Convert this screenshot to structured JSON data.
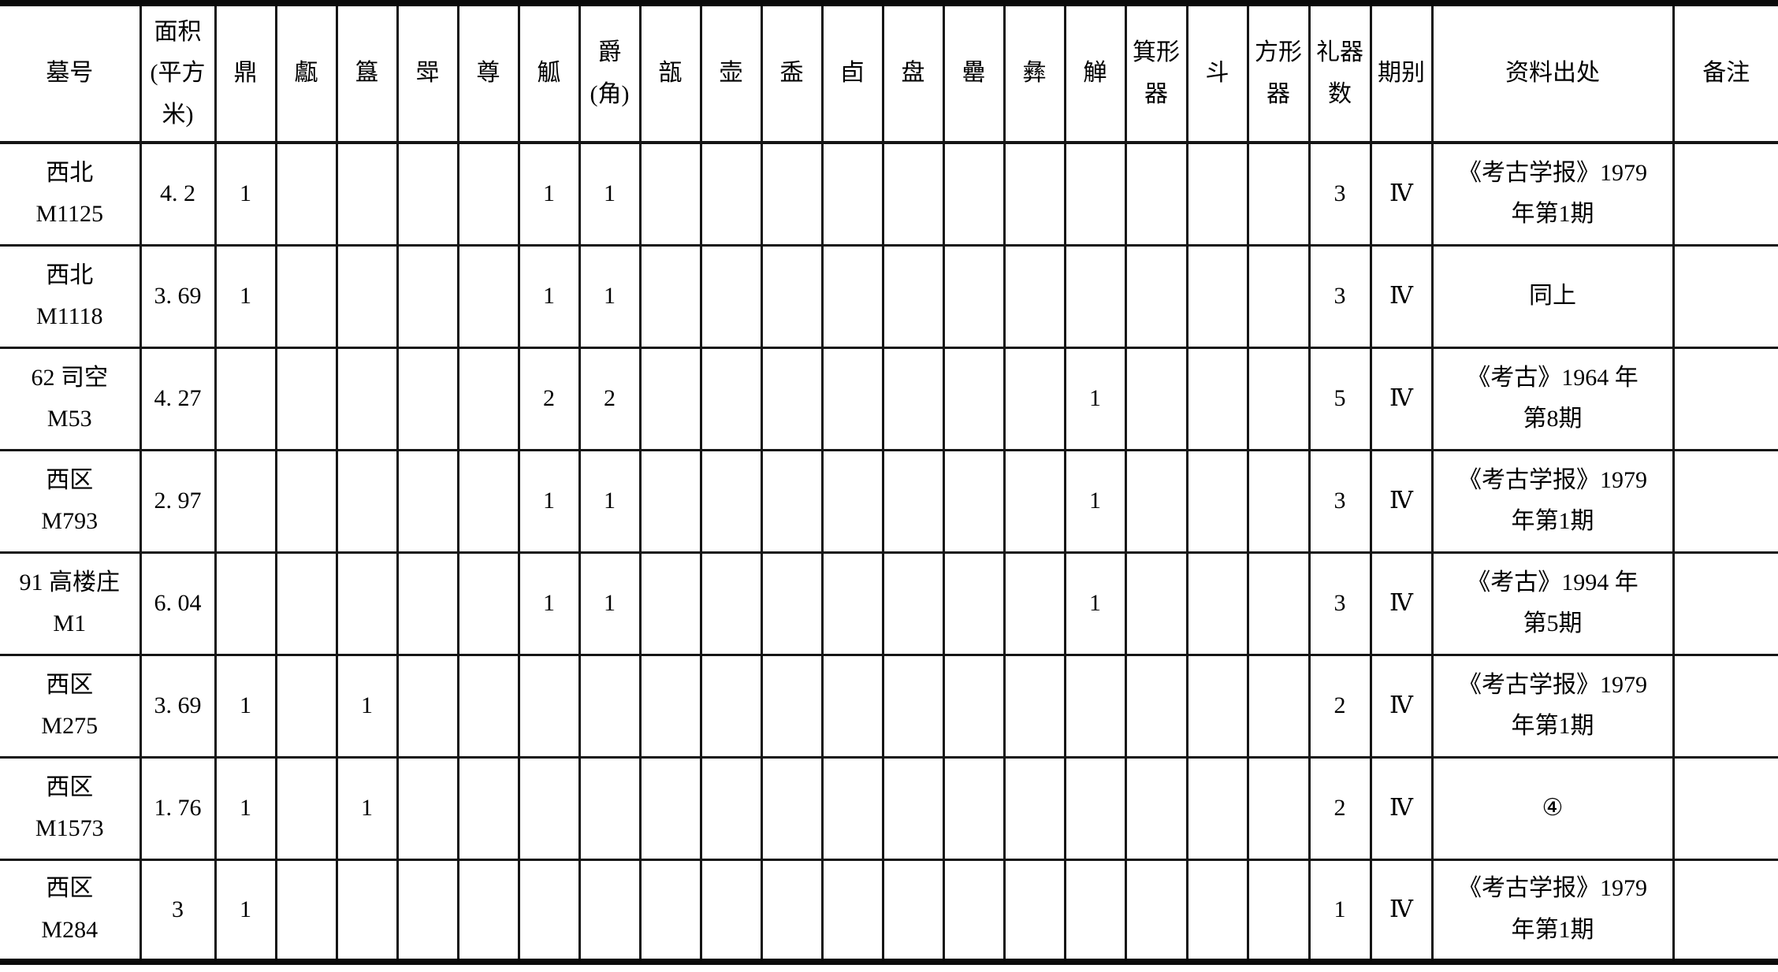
{
  "table": {
    "columns": [
      {
        "key": "muhao",
        "label": "墓号"
      },
      {
        "key": "mianji",
        "label": "面积\n(平方\n米)"
      },
      {
        "key": "ding",
        "label": "鼎"
      },
      {
        "key": "yan",
        "label": "甗"
      },
      {
        "key": "gui",
        "label": "簋"
      },
      {
        "key": "jia",
        "label": "斝"
      },
      {
        "key": "zun",
        "label": "尊"
      },
      {
        "key": "gu",
        "label": "觚"
      },
      {
        "key": "jue-jiao",
        "label": "爵\n(角)"
      },
      {
        "key": "bu",
        "label": "瓿"
      },
      {
        "key": "hu",
        "label": "壶"
      },
      {
        "key": "he",
        "label": "盉"
      },
      {
        "key": "you",
        "label": "卣"
      },
      {
        "key": "pan",
        "label": "盘"
      },
      {
        "key": "lei",
        "label": "罍"
      },
      {
        "key": "yi",
        "label": "彝"
      },
      {
        "key": "zhi",
        "label": "觯"
      },
      {
        "key": "jixingqi",
        "label": "箕形\n器"
      },
      {
        "key": "dou",
        "label": "斗"
      },
      {
        "key": "fangxingqi",
        "label": "方形\n器"
      },
      {
        "key": "liqishu",
        "label": "礼器\n数"
      },
      {
        "key": "qibie",
        "label": "期别"
      },
      {
        "key": "ziliaochuchu",
        "label": "资料出处"
      },
      {
        "key": "beizhu",
        "label": "备注"
      }
    ],
    "rows": [
      {
        "cells": [
          "西北\nM1125",
          "4. 2",
          "1",
          "",
          "",
          "",
          "",
          "1",
          "1",
          "",
          "",
          "",
          "",
          "",
          "",
          "",
          "",
          "",
          "",
          "",
          "3",
          "Ⅳ",
          "《考古学报》1979\n年第1期",
          ""
        ],
        "source_centered": false
      },
      {
        "cells": [
          "西北\nM1118",
          "3. 69",
          "1",
          "",
          "",
          "",
          "",
          "1",
          "1",
          "",
          "",
          "",
          "",
          "",
          "",
          "",
          "",
          "",
          "",
          "",
          "3",
          "Ⅳ",
          "同上",
          ""
        ],
        "source_centered": false
      },
      {
        "cells": [
          "62 司空\nM53",
          "4. 27",
          "",
          "",
          "",
          "",
          "",
          "2",
          "2",
          "",
          "",
          "",
          "",
          "",
          "",
          "",
          "1",
          "",
          "",
          "",
          "5",
          "Ⅳ",
          "《考古》1964 年\n第8期",
          ""
        ],
        "source_centered": false
      },
      {
        "cells": [
          "西区\nM793",
          "2. 97",
          "",
          "",
          "",
          "",
          "",
          "1",
          "1",
          "",
          "",
          "",
          "",
          "",
          "",
          "",
          "1",
          "",
          "",
          "",
          "3",
          "Ⅳ",
          "《考古学报》1979\n年第1期",
          ""
        ],
        "source_centered": false
      },
      {
        "cells": [
          "91 高楼庄\nM1",
          "6. 04",
          "",
          "",
          "",
          "",
          "",
          "1",
          "1",
          "",
          "",
          "",
          "",
          "",
          "",
          "",
          "1",
          "",
          "",
          "",
          "3",
          "Ⅳ",
          "《考古》1994 年\n第5期",
          ""
        ],
        "source_centered": false
      },
      {
        "cells": [
          "西区\nM275",
          "3. 69",
          "1",
          "",
          "1",
          "",
          "",
          "",
          "",
          "",
          "",
          "",
          "",
          "",
          "",
          "",
          "",
          "",
          "",
          "",
          "2",
          "Ⅳ",
          "《考古学报》1979\n年第1期",
          ""
        ],
        "source_centered": false
      },
      {
        "cells": [
          "西区\nM1573",
          "1. 76",
          "1",
          "",
          "1",
          "",
          "",
          "",
          "",
          "",
          "",
          "",
          "",
          "",
          "",
          "",
          "",
          "",
          "",
          "",
          "2",
          "Ⅳ",
          "④",
          ""
        ],
        "source_centered": true
      },
      {
        "cells": [
          "西区\nM284",
          "3",
          "1",
          "",
          "",
          "",
          "",
          "",
          "",
          "",
          "",
          "",
          "",
          "",
          "",
          "",
          "",
          "",
          "",
          "",
          "1",
          "Ⅳ",
          "《考古学报》1979\n年第1期",
          ""
        ],
        "source_centered": false
      }
    ]
  }
}
